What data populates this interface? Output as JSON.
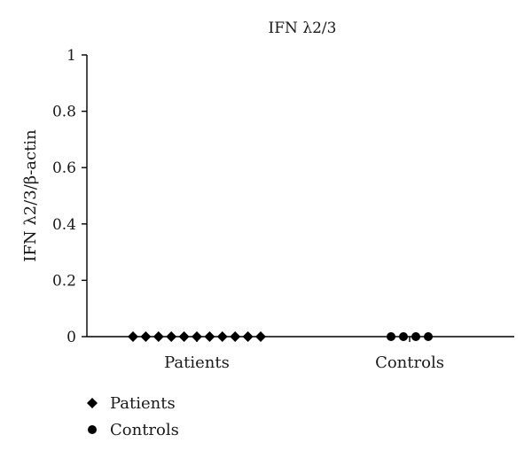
{
  "chart_data": {
    "type": "scatter",
    "title": "IFN λ2/3",
    "ylabel": "IFN λ2/3/β-actin",
    "xlabel": "",
    "ylim": [
      0,
      1
    ],
    "yticks": [
      "0",
      "0.2",
      "0.4",
      "0.6",
      "0.8",
      "1"
    ],
    "categories": [
      "Patients",
      "Controls"
    ],
    "series": [
      {
        "name": "Patients",
        "marker": "diamond",
        "category": "Patients",
        "values": [
          0,
          0,
          0,
          0,
          0,
          0,
          0,
          0,
          0,
          0,
          0
        ]
      },
      {
        "name": "Controls",
        "marker": "circle",
        "category": "Controls",
        "values": [
          0,
          0,
          0,
          0
        ]
      }
    ],
    "grid": false,
    "legend_position": "bottom-left",
    "colors": {
      "marker": "#000000",
      "axis": "#000000",
      "text": "#1a1a1a"
    }
  }
}
